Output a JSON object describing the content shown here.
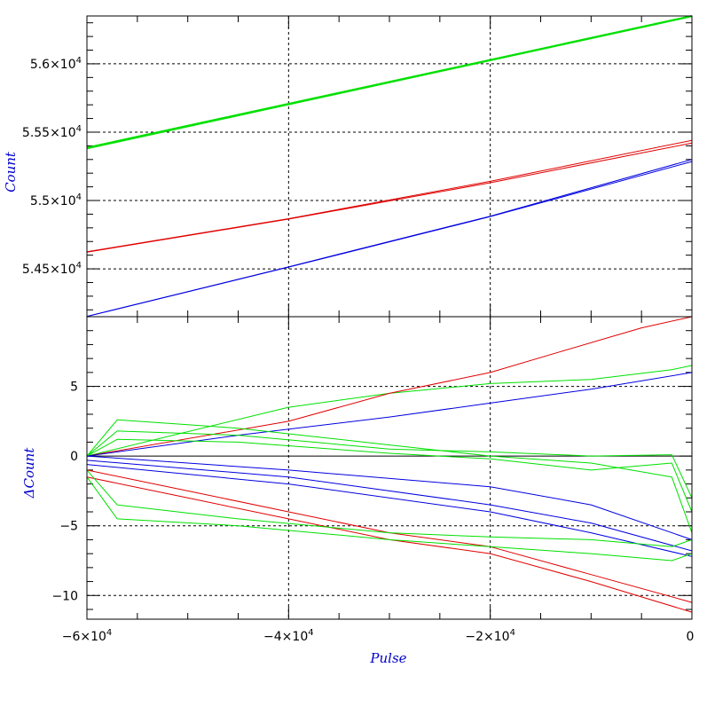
{
  "chart_data": [
    {
      "type": "line",
      "panel": "top",
      "title": "",
      "xlabel": "",
      "ylabel": "Count",
      "xlim": [
        -60000,
        0
      ],
      "ylim": [
        54150,
        56350
      ],
      "xgrid": [
        -40000,
        -20000
      ],
      "ygrid": [
        54500,
        55000,
        55500,
        56000
      ],
      "ytick_labels": [
        {
          "v": 54500,
          "m": "5.45",
          "e": "4"
        },
        {
          "v": 55000,
          "m": "5.5",
          "e": "4"
        },
        {
          "v": 55500,
          "m": "5.55",
          "e": "4"
        },
        {
          "v": 56000,
          "m": "5.6",
          "e": "4"
        }
      ],
      "series": [
        {
          "color": "#00e000",
          "width": 2,
          "x": [
            -60000,
            0
          ],
          "y": [
            55386,
            56350
          ]
        },
        {
          "color": "#00e000",
          "width": 1,
          "x": [
            -60000,
            0
          ],
          "y": [
            55378,
            56345
          ]
        },
        {
          "color": "#e00000",
          "width": 1,
          "x": [
            -60000,
            -40000,
            -20000,
            0
          ],
          "y": [
            54625,
            54867,
            55140,
            55440
          ]
        },
        {
          "color": "#e00000",
          "width": 1,
          "x": [
            -60000,
            -40000,
            -20000,
            0
          ],
          "y": [
            54622,
            54864,
            55130,
            55420
          ]
        },
        {
          "color": "#0000e0",
          "width": 1,
          "x": [
            -60000,
            -40000,
            -20000,
            0
          ],
          "y": [
            54152,
            54515,
            54885,
            55300
          ]
        },
        {
          "color": "#0000e0",
          "width": 1,
          "x": [
            -60000,
            -40000,
            -20000,
            0
          ],
          "y": [
            54152,
            54512,
            54882,
            55285
          ]
        }
      ]
    },
    {
      "type": "line",
      "panel": "bottom",
      "title": "",
      "xlabel": "Pulse",
      "ylabel": "ΔCount",
      "xlim": [
        -60000,
        0
      ],
      "ylim": [
        -11.7,
        10
      ],
      "xgrid": [
        -40000,
        -20000
      ],
      "ygrid": [
        -10,
        -5,
        5
      ],
      "zero_line": 0,
      "yticks": [
        -10,
        -5,
        0,
        5
      ],
      "ytick_text": [
        "−10",
        "−5",
        "0",
        "5"
      ],
      "xtick_labels": [
        {
          "v": -60000,
          "m": "−6×10",
          "e": "4"
        },
        {
          "v": -40000,
          "m": "−4×10",
          "e": "4"
        },
        {
          "v": -20000,
          "m": "−2×10",
          "e": "4"
        },
        {
          "v": 0,
          "m": "0",
          "e": ""
        }
      ],
      "series": [
        {
          "color": "#00e000",
          "width": 1,
          "x": [
            -60000,
            -40000,
            -30000,
            -20000,
            -10000,
            -2000,
            0
          ],
          "y": [
            0,
            3.5,
            4.5,
            5.2,
            5.5,
            6.2,
            6.5
          ]
        },
        {
          "color": "#e00000",
          "width": 1,
          "x": [
            -60000,
            -40000,
            -30000,
            -20000,
            -13000,
            -5000,
            0
          ],
          "y": [
            0,
            2.5,
            4.5,
            6.0,
            7.5,
            9.2,
            10.0
          ]
        },
        {
          "color": "#0000e0",
          "width": 1,
          "x": [
            -60000,
            -45000,
            -30000,
            -20000,
            -10000,
            0
          ],
          "y": [
            0,
            1.5,
            2.8,
            3.8,
            4.8,
            6.0
          ]
        },
        {
          "color": "#00e000",
          "width": 1,
          "x": [
            -60000,
            -57000,
            -45000,
            -30000,
            -20000,
            -10000,
            -2000,
            0
          ],
          "y": [
            0,
            1.8,
            1.5,
            0.5,
            0.3,
            0.0,
            0.1,
            -3.0
          ]
        },
        {
          "color": "#00e000",
          "width": 1,
          "x": [
            -60000,
            -57000,
            -45000,
            -30000,
            -20000,
            -10000,
            -2000,
            0
          ],
          "y": [
            0,
            2.6,
            2.0,
            0.8,
            0.0,
            -0.5,
            -1.5,
            -5.5
          ]
        },
        {
          "color": "#00e000",
          "width": 1,
          "x": [
            -60000,
            -57000,
            -45000,
            -30000,
            -20000,
            -10000,
            -2000,
            0
          ],
          "y": [
            0,
            1.2,
            1.0,
            0.2,
            -0.2,
            -1.0,
            -0.5,
            -4.0
          ]
        },
        {
          "color": "#0000e0",
          "width": 1,
          "x": [
            -60000,
            -40000,
            -20000,
            -10000,
            0
          ],
          "y": [
            0,
            -1.0,
            -2.2,
            -3.5,
            -6.0
          ]
        },
        {
          "color": "#0000e0",
          "width": 1,
          "x": [
            -60000,
            -40000,
            -20000,
            -10000,
            0
          ],
          "y": [
            -0.3,
            -1.5,
            -3.5,
            -4.8,
            -6.8
          ]
        },
        {
          "color": "#0000e0",
          "width": 1,
          "x": [
            -60000,
            -40000,
            -20000,
            -10000,
            0
          ],
          "y": [
            -0.6,
            -2.0,
            -4.0,
            -5.5,
            -7.2
          ]
        },
        {
          "color": "#e00000",
          "width": 1,
          "x": [
            -60000,
            -50000,
            -40000,
            -30000,
            -20000,
            -10000,
            0
          ],
          "y": [
            -1.0,
            -2.5,
            -4.0,
            -5.5,
            -6.5,
            -8.5,
            -10.5
          ]
        },
        {
          "color": "#e00000",
          "width": 1,
          "x": [
            -60000,
            -50000,
            -40000,
            -30000,
            -20000,
            -10000,
            0
          ],
          "y": [
            -1.5,
            -3.0,
            -4.5,
            -6.0,
            -7.0,
            -9.0,
            -11.2
          ]
        },
        {
          "color": "#00e000",
          "width": 1,
          "x": [
            -60000,
            -57000,
            -45000,
            -30000,
            -20000,
            -10000,
            -2000,
            0
          ],
          "y": [
            -1.0,
            -3.5,
            -4.5,
            -5.5,
            -5.8,
            -6.0,
            -6.5,
            -6.0
          ]
        },
        {
          "color": "#00e000",
          "width": 1,
          "x": [
            -60000,
            -57000,
            -45000,
            -30000,
            -20000,
            -10000,
            -2000,
            0
          ],
          "y": [
            -1.5,
            -4.5,
            -5.0,
            -6.0,
            -6.5,
            -7.0,
            -7.5,
            -7.0
          ]
        }
      ]
    }
  ]
}
